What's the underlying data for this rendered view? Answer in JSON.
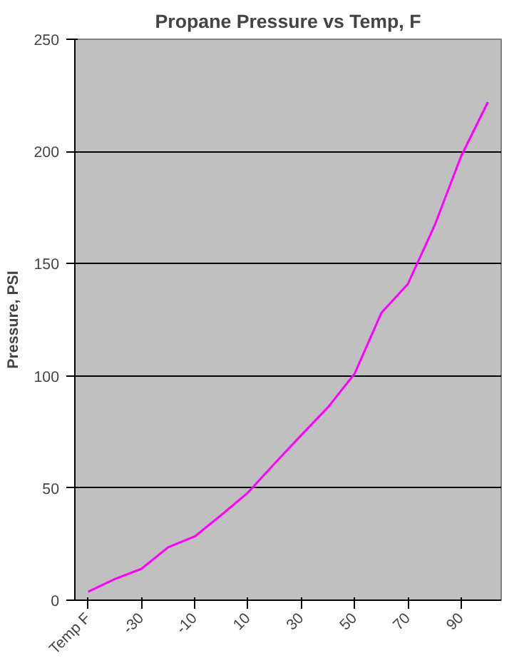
{
  "chart_data": {
    "type": "line",
    "title": "Propane Pressure vs Temp, F",
    "ylabel": "Pressure, PSI",
    "categories": [
      "Temp F",
      null,
      "-30",
      null,
      "-10",
      null,
      "10",
      null,
      "30",
      null,
      "50",
      null,
      "70",
      null,
      "90",
      null
    ],
    "series": [
      {
        "color": "#ff00ff",
        "values": [
          3.8,
          9.4,
          14,
          23.6,
          28.4,
          38,
          48,
          61,
          73.6,
          86,
          101,
          128,
          141,
          167,
          198,
          222
        ]
      }
    ],
    "ylim": [
      0,
      250
    ],
    "yticks": [
      0,
      50,
      100,
      150,
      200,
      250
    ],
    "grid": "y",
    "marker": "none",
    "line_style": "solid"
  }
}
